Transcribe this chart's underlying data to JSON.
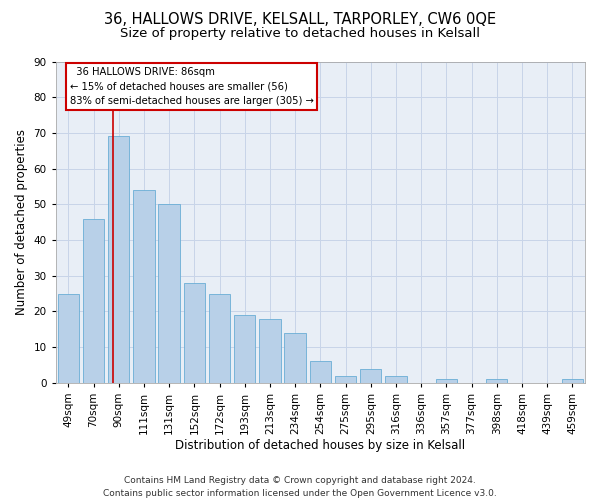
{
  "title1": "36, HALLOWS DRIVE, KELSALL, TARPORLEY, CW6 0QE",
  "title2": "Size of property relative to detached houses in Kelsall",
  "xlabel": "Distribution of detached houses by size in Kelsall",
  "ylabel": "Number of detached properties",
  "categories": [
    "49sqm",
    "70sqm",
    "90sqm",
    "111sqm",
    "131sqm",
    "152sqm",
    "172sqm",
    "193sqm",
    "213sqm",
    "234sqm",
    "254sqm",
    "275sqm",
    "295sqm",
    "316sqm",
    "336sqm",
    "357sqm",
    "377sqm",
    "398sqm",
    "418sqm",
    "439sqm",
    "459sqm"
  ],
  "values": [
    25,
    46,
    69,
    54,
    50,
    28,
    25,
    19,
    18,
    14,
    6,
    2,
    4,
    2,
    0,
    1,
    0,
    1,
    0,
    0,
    1
  ],
  "bar_color": "#b8d0e8",
  "bar_edge_color": "#6aaed6",
  "annotation_line_label": "36 HALLOWS DRIVE: 86sqm",
  "annotation_text1": "← 15% of detached houses are smaller (56)",
  "annotation_text2": "83% of semi-detached houses are larger (305) →",
  "annotation_box_color": "#ffffff",
  "annotation_box_edge_color": "#cc0000",
  "vline_color": "#cc0000",
  "ylim": [
    0,
    90
  ],
  "yticks": [
    0,
    10,
    20,
    30,
    40,
    50,
    60,
    70,
    80,
    90
  ],
  "grid_color": "#c8d4e8",
  "bg_color": "#e8eef6",
  "footer1": "Contains HM Land Registry data © Crown copyright and database right 2024.",
  "footer2": "Contains public sector information licensed under the Open Government Licence v3.0.",
  "title1_fontsize": 10.5,
  "title2_fontsize": 9.5,
  "xlabel_fontsize": 8.5,
  "ylabel_fontsize": 8.5,
  "tick_fontsize": 7.5,
  "footer_fontsize": 6.5,
  "vline_x_index": 1.76
}
